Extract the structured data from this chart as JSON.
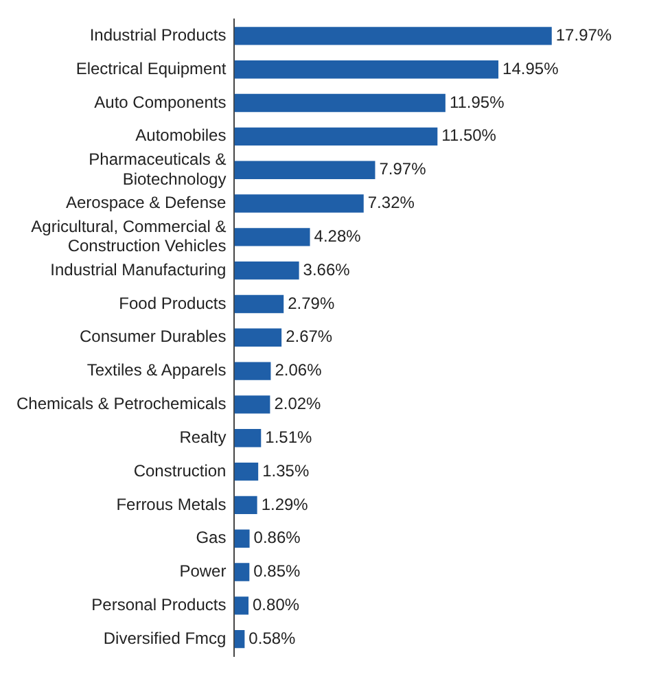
{
  "chart_data": {
    "type": "bar",
    "orientation": "horizontal",
    "categories": [
      "Industrial Products",
      "Electrical Equipment",
      "Auto Components",
      "Automobiles",
      "Pharmaceuticals &\nBiotechnology",
      "Aerospace & Defense",
      "Agricultural, Commercial &\nConstruction Vehicles",
      "Industrial Manufacturing",
      "Food Products",
      "Consumer Durables",
      "Textiles & Apparels",
      "Chemicals & Petrochemicals",
      "Realty",
      "Construction",
      "Ferrous Metals",
      "Gas",
      "Power",
      "Personal Products",
      "Diversified Fmcg"
    ],
    "values": [
      17.97,
      14.95,
      11.95,
      11.5,
      7.97,
      7.32,
      4.28,
      3.66,
      2.79,
      2.67,
      2.06,
      2.02,
      1.51,
      1.35,
      1.29,
      0.86,
      0.85,
      0.8,
      0.58
    ],
    "value_labels": [
      "17.97%",
      "14.95%",
      "11.95%",
      "11.50%",
      "7.97%",
      "7.32%",
      "4.28%",
      "3.66%",
      "2.79%",
      "2.67%",
      "2.06%",
      "2.02%",
      "1.51%",
      "1.35%",
      "1.29%",
      "0.86%",
      "0.85%",
      "0.80%",
      "0.58%"
    ],
    "color": "#1f5fa8",
    "grid": false,
    "legend": false
  }
}
